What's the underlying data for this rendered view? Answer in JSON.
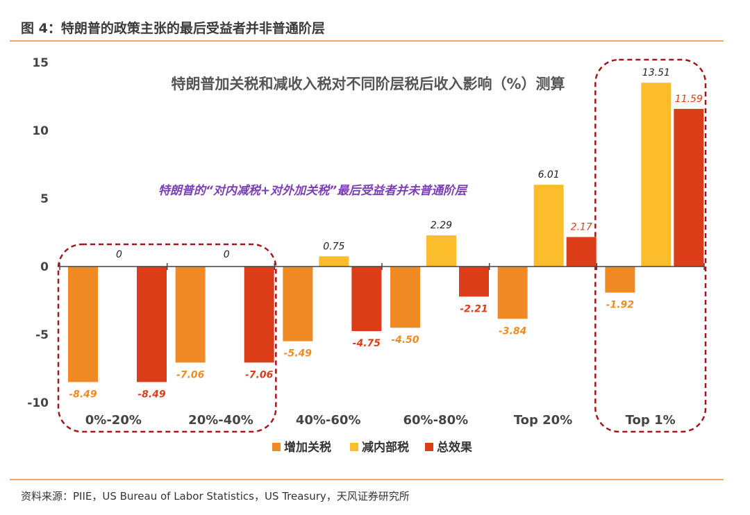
{
  "figure": {
    "title": "图 4：特朗普的政策主张的最后受益者并非普通阶层",
    "source": "资料来源：PIIE，US  Bureau of Labor Statistics，US Treasury，天风证券研究所"
  },
  "colors": {
    "tariff": "#f08a24",
    "tax_cut": "#fbbd2b",
    "total": "#dc3d19",
    "annotation": "#7a3fb5",
    "dashed_box": "#a4161e"
  },
  "chart_data": {
    "type": "bar",
    "title": "特朗普加关税和减收入税对不同阶层税后收入影响（%）测算",
    "annotation": "特朗普的“对内减税+对外加关税”最后受益者并未普通阶层",
    "categories": [
      "0%-20%",
      "20%-40%",
      "40%-60%",
      "60%-80%",
      "Top 20%",
      "Top 1%"
    ],
    "series": [
      {
        "name": "增加关税",
        "values": [
          -8.49,
          -7.06,
          -5.49,
          -4.5,
          -3.84,
          -1.92
        ]
      },
      {
        "name": "减内部税",
        "values": [
          0,
          0,
          0.75,
          2.29,
          6.01,
          13.51
        ]
      },
      {
        "name": "总效果",
        "values": [
          -8.49,
          -7.06,
          -4.75,
          -2.21,
          2.17,
          11.59
        ]
      }
    ],
    "data_labels": {
      "增加关税": [
        "-8.49",
        "-7.06",
        "-5.49",
        "-4.50",
        "-3.84",
        "-1.92"
      ],
      "减内部税": [
        "0",
        "0",
        "0.75",
        "2.29",
        "6.01",
        "13.51"
      ],
      "总效果": [
        "-8.49",
        "-7.06",
        "-4.75",
        "-2.21",
        "2.17",
        "11.59"
      ]
    },
    "yticks": [
      "15",
      "10",
      "5",
      "0",
      "-5",
      "-10"
    ],
    "ylim": [
      -10,
      15
    ],
    "grid": false,
    "legend": "bottom",
    "highlighted_categories": [
      [
        0,
        1
      ],
      [
        5
      ]
    ]
  }
}
